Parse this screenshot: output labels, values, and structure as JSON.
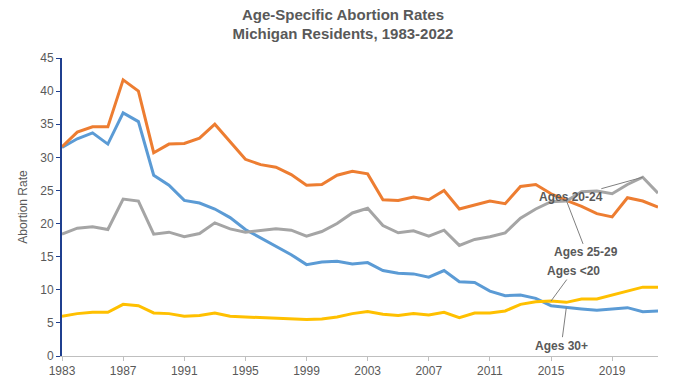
{
  "chart_data": {
    "type": "line",
    "title": "Age-Specific Abortion Rates",
    "subtitle": "Michigan Residents, 1983-2022",
    "y_label": "Abortion Rate",
    "x": [
      1983,
      1984,
      1985,
      1986,
      1987,
      1988,
      1989,
      1990,
      1991,
      1992,
      1993,
      1994,
      1995,
      1996,
      1997,
      1998,
      1999,
      2000,
      2001,
      2002,
      2003,
      2004,
      2005,
      2006,
      2007,
      2008,
      2009,
      2010,
      2011,
      2012,
      2013,
      2014,
      2015,
      2016,
      2017,
      2018,
      2019,
      2020,
      2021,
      2022
    ],
    "series": [
      {
        "name": "Ages 30+",
        "color": "#5B9BD5",
        "values": [
          31.5,
          32.8,
          33.7,
          32.0,
          36.7,
          35.4,
          27.3,
          25.8,
          23.5,
          23.1,
          22.2,
          20.9,
          19.1,
          17.8,
          16.6,
          15.3,
          13.8,
          14.2,
          14.3,
          13.9,
          14.1,
          12.9,
          12.5,
          12.4,
          11.9,
          12.9,
          11.2,
          11.1,
          9.8,
          9.1,
          9.2,
          8.7,
          7.6,
          7.3,
          7.1,
          6.9,
          7.1,
          7.3,
          6.7,
          6.8
        ]
      },
      {
        "name": "Ages 25-29",
        "color": "#ED7D31",
        "values": [
          31.6,
          33.8,
          34.6,
          34.6,
          41.7,
          40.0,
          30.7,
          32.0,
          32.1,
          32.9,
          35.0,
          32.3,
          29.7,
          28.9,
          28.5,
          27.4,
          25.8,
          25.9,
          27.3,
          27.9,
          27.5,
          23.6,
          23.5,
          24.0,
          23.6,
          25.0,
          22.2,
          22.8,
          23.4,
          23.0,
          25.6,
          25.9,
          24.5,
          23.5,
          22.6,
          21.5,
          21.0,
          23.9,
          23.4,
          22.5
        ]
      },
      {
        "name": "Ages 20-24",
        "color": "#A5A5A5",
        "values": [
          18.4,
          19.3,
          19.5,
          19.1,
          23.7,
          23.4,
          18.4,
          18.7,
          18.0,
          18.5,
          20.1,
          19.2,
          18.7,
          18.9,
          19.2,
          19.0,
          18.1,
          18.8,
          20.0,
          21.6,
          22.3,
          19.7,
          18.6,
          18.9,
          18.1,
          19.0,
          16.7,
          17.6,
          18.0,
          18.6,
          20.8,
          22.2,
          23.3,
          23.4,
          24.8,
          24.9,
          24.5,
          25.9,
          27.0,
          24.6
        ]
      },
      {
        "name": "Ages <20",
        "color": "#FFC000",
        "values": [
          6.0,
          6.4,
          6.6,
          6.6,
          7.8,
          7.6,
          6.5,
          6.4,
          6.0,
          6.1,
          6.5,
          6.0,
          5.9,
          5.8,
          5.8,
          5.6,
          5.5,
          5.6,
          5.9,
          6.4,
          6.7,
          6.3,
          6.1,
          6.4,
          6.2,
          6.6,
          5.8,
          6.5,
          6.5,
          6.8,
          7.8,
          8.2,
          8.3,
          8.1,
          8.6,
          8.6,
          9.2,
          9.8,
          10.4,
          10.4
        ]
      }
    ],
    "xlim": [
      1983,
      2022
    ],
    "xticks": [
      1983,
      1987,
      1991,
      1995,
      1999,
      2003,
      2007,
      2011,
      2015,
      2019
    ],
    "ylim": [
      0,
      45
    ],
    "yticks": [
      0,
      5,
      10,
      15,
      20,
      25,
      30,
      35,
      40,
      45
    ],
    "grid": false
  }
}
